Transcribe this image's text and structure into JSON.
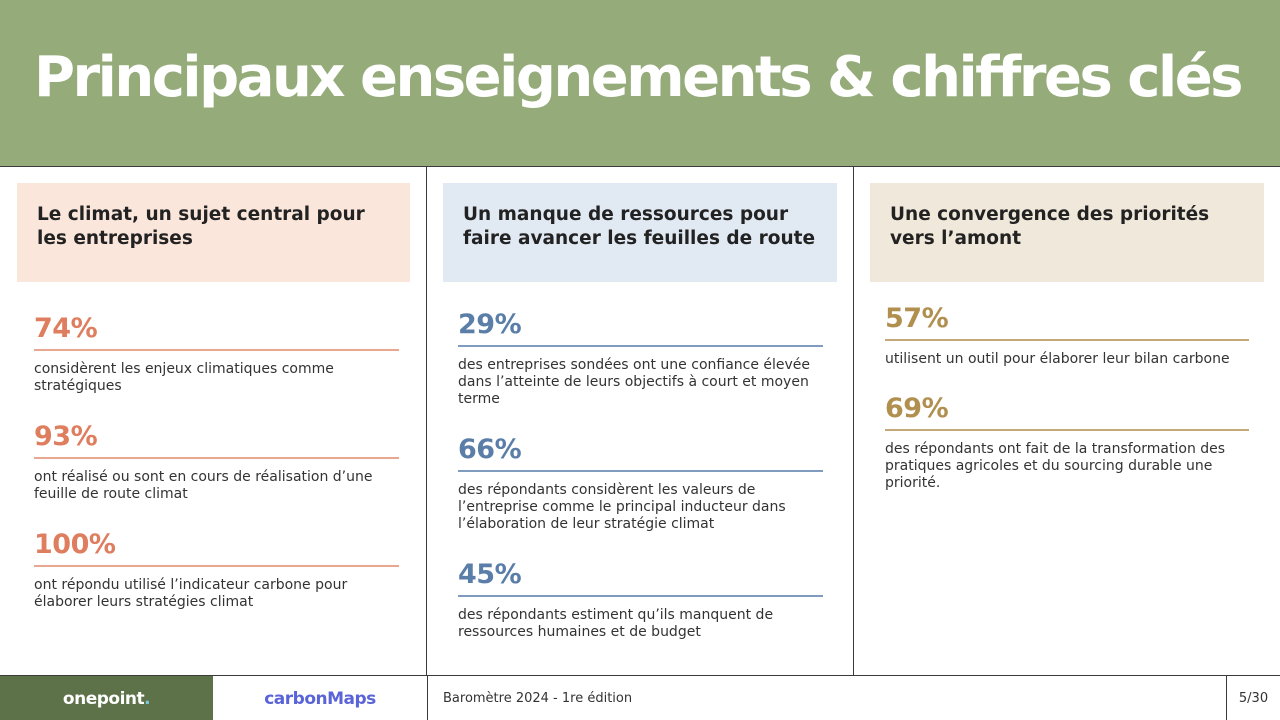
{
  "title": "Principaux enseignements & chiffres clés",
  "columns": [
    {
      "heading": "Le climat, un sujet central pour les entreprises",
      "stats": [
        {
          "value": "74%",
          "text": "considèrent les enjeux climatiques comme stratégiques"
        },
        {
          "value": "93%",
          "text": "ont réalisé ou sont en cours de réalisation d’une feuille de route climat"
        },
        {
          "value": "100%",
          "text": " ont répondu utilisé l’indicateur carbone pour élaborer leurs stratégies climat"
        }
      ]
    },
    {
      "heading": "Un manque de ressources pour faire avancer les feuilles de route",
      "stats": [
        {
          "value": "29%",
          "text": " des entreprises sondées ont une confiance élevée dans l’atteinte de leurs objectifs à court et moyen terme"
        },
        {
          "value": "66%",
          "text": "des répondants considèrent les valeurs de l’entreprise comme le principal inducteur dans l’élaboration de leur stratégie climat"
        },
        {
          "value": "45%",
          "text": "des répondants estiment qu’ils manquent de ressources humaines et de budget"
        }
      ]
    },
    {
      "heading": "Une convergence des priorités vers l’amont",
      "stats": [
        {
          "value": "57%",
          "text": "utilisent un outil pour élaborer leur bilan carbone"
        },
        {
          "value": "69%",
          "text": "des répondants ont fait de la transformation des pratiques agricoles et du sourcing durable une priorité."
        }
      ]
    }
  ],
  "footer": {
    "logo_onepoint": "onepoint",
    "logo_onepoint_dot": ".",
    "logo_carbonmaps": "carbonMaps",
    "edition": "Baromètre 2024 - 1re édition",
    "page": "5/30"
  }
}
